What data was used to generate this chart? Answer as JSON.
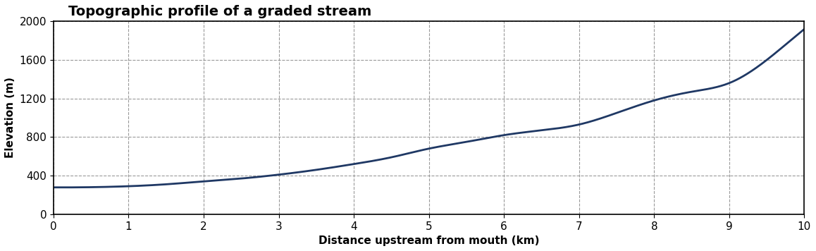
{
  "title": "Topographic profile of a graded stream",
  "xlabel": "Distance upstream from mouth (km)",
  "ylabel": "Elevation (m)",
  "xlim": [
    0,
    10
  ],
  "ylim": [
    0,
    2000
  ],
  "xticks": [
    0,
    1,
    2,
    3,
    4,
    5,
    6,
    7,
    8,
    9,
    10
  ],
  "yticks": [
    0,
    400,
    800,
    1200,
    1600,
    2000
  ],
  "line_color": "#1f3864",
  "line_width": 2.0,
  "grid_color": "#999999",
  "grid_style": "--",
  "bg_color": "#ffffff",
  "title_fontsize": 14,
  "label_fontsize": 11,
  "tick_fontsize": 11,
  "x_data": [
    0,
    0.5,
    1.0,
    1.5,
    2.0,
    2.5,
    3.0,
    3.5,
    4.0,
    4.5,
    5.0,
    5.5,
    6.0,
    6.5,
    7.0,
    7.5,
    8.0,
    8.5,
    9.0,
    9.5,
    10.0
  ],
  "y_data": [
    278,
    280,
    290,
    310,
    340,
    370,
    410,
    460,
    520,
    590,
    680,
    750,
    820,
    870,
    930,
    1050,
    1180,
    1270,
    1360,
    1600,
    1920
  ]
}
